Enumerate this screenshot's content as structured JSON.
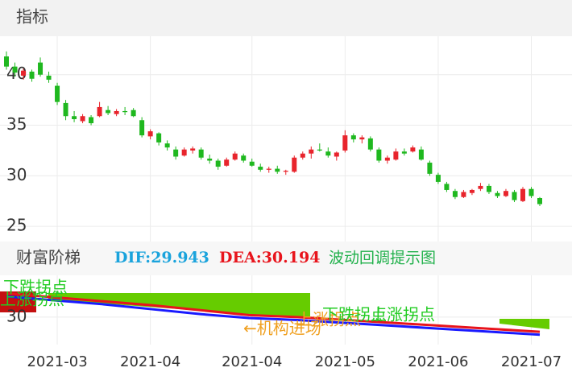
{
  "chart_data": [
    {
      "type": "candlestick",
      "title": "指标",
      "up_color": "#e8242c",
      "down_color": "#1fb81f",
      "ylim": [
        23.9,
        43.8
      ],
      "yticks": [
        25,
        30,
        35,
        40
      ],
      "grid": true,
      "categories": [
        null,
        null,
        null,
        null,
        null,
        null,
        "2021-03",
        null,
        null,
        null,
        null,
        null,
        null,
        null,
        null,
        null,
        null,
        "2021-04",
        null,
        null,
        null,
        null,
        null,
        null,
        null,
        null,
        null,
        null,
        null,
        "2021-04",
        null,
        null,
        null,
        null,
        null,
        null,
        null,
        null,
        null,
        null,
        "2021-05",
        null,
        null,
        null,
        null,
        null,
        null,
        null,
        null,
        null,
        null,
        "2021-06",
        null,
        null,
        null,
        null,
        null,
        null,
        null,
        null,
        null,
        null,
        "2021-07",
        null
      ],
      "ohlc": [
        [
          41.8,
          42.3,
          40.5,
          40.8
        ],
        [
          40.8,
          41.2,
          39.8,
          40.2
        ],
        [
          39.9,
          40.6,
          39.5,
          40.4
        ],
        [
          40.3,
          40.5,
          39.3,
          39.6
        ],
        [
          41.2,
          41.7,
          39.8,
          40.0
        ],
        [
          39.9,
          40.3,
          39.2,
          39.5
        ],
        [
          38.9,
          39.2,
          37.0,
          37.3
        ],
        [
          37.2,
          37.5,
          35.5,
          35.9
        ],
        [
          35.9,
          36.4,
          35.3,
          35.6
        ],
        [
          35.4,
          36.1,
          35.2,
          35.9
        ],
        [
          35.8,
          36.0,
          35.0,
          35.2
        ],
        [
          35.9,
          37.3,
          35.8,
          36.8
        ],
        [
          36.5,
          36.9,
          36.0,
          36.2
        ],
        [
          36.1,
          36.6,
          35.9,
          36.4
        ],
        [
          36.4,
          36.8,
          36.0,
          36.3
        ],
        [
          36.5,
          36.7,
          35.8,
          35.9
        ],
        [
          35.5,
          35.8,
          33.8,
          34.0
        ],
        [
          33.9,
          34.6,
          33.6,
          34.4
        ],
        [
          34.2,
          34.3,
          33.0,
          33.3
        ],
        [
          33.2,
          33.5,
          32.5,
          32.8
        ],
        [
          32.6,
          32.9,
          31.6,
          31.9
        ],
        [
          32.0,
          32.8,
          31.9,
          32.6
        ],
        [
          32.5,
          32.9,
          32.2,
          32.7
        ],
        [
          32.6,
          32.8,
          31.6,
          31.8
        ],
        [
          31.7,
          32.1,
          31.2,
          31.5
        ],
        [
          31.5,
          31.7,
          30.6,
          30.9
        ],
        [
          31.0,
          31.8,
          30.9,
          31.6
        ],
        [
          31.6,
          32.4,
          31.5,
          32.2
        ],
        [
          32.0,
          32.2,
          31.3,
          31.5
        ],
        [
          31.4,
          31.7,
          30.9,
          31.0
        ],
        [
          30.9,
          31.2,
          30.4,
          30.6
        ],
        [
          30.6,
          30.9,
          30.3,
          30.7
        ],
        [
          30.7,
          31.0,
          30.2,
          30.4
        ],
        [
          30.4,
          30.6,
          30.1,
          30.5
        ],
        [
          30.4,
          32.0,
          30.3,
          31.8
        ],
        [
          31.8,
          32.4,
          31.6,
          32.2
        ],
        [
          32.2,
          32.9,
          31.7,
          32.6
        ],
        [
          32.6,
          33.2,
          32.4,
          32.5
        ],
        [
          32.4,
          32.8,
          31.8,
          32.0
        ],
        [
          31.9,
          32.4,
          31.5,
          32.3
        ],
        [
          32.5,
          34.5,
          32.3,
          34.0
        ],
        [
          34.0,
          34.2,
          33.3,
          33.6
        ],
        [
          33.6,
          34.0,
          33.2,
          33.8
        ],
        [
          33.7,
          33.9,
          32.4,
          32.6
        ],
        [
          32.6,
          32.8,
          31.3,
          31.5
        ],
        [
          31.5,
          32.0,
          31.2,
          31.8
        ],
        [
          31.6,
          32.7,
          31.5,
          32.4
        ],
        [
          32.4,
          32.7,
          32.0,
          32.2
        ],
        [
          32.4,
          33.0,
          32.3,
          32.8
        ],
        [
          32.6,
          32.9,
          31.5,
          31.6
        ],
        [
          31.3,
          31.5,
          30.0,
          30.2
        ],
        [
          30.1,
          30.3,
          29.2,
          29.4
        ],
        [
          29.2,
          29.4,
          28.4,
          28.6
        ],
        [
          28.5,
          28.7,
          27.7,
          27.9
        ],
        [
          27.9,
          28.6,
          27.8,
          28.4
        ],
        [
          28.3,
          28.7,
          28.1,
          28.6
        ],
        [
          28.7,
          29.3,
          28.5,
          29.0
        ],
        [
          29.0,
          29.2,
          28.2,
          28.4
        ],
        [
          28.3,
          28.5,
          27.8,
          28.0
        ],
        [
          28.0,
          28.7,
          27.9,
          28.5
        ],
        [
          28.4,
          28.6,
          27.4,
          27.6
        ],
        [
          27.5,
          28.9,
          27.4,
          28.7
        ],
        [
          28.7,
          28.9,
          27.8,
          28.0
        ],
        [
          27.8,
          27.9,
          27.0,
          27.2
        ]
      ]
    },
    {
      "type": "line",
      "title": "财富阶梯",
      "dif_label": "DIF:29.943",
      "dea_label": "DEA:30.194",
      "subtitle": "波动回调提示图",
      "ylim": [
        28.6,
        32
      ],
      "yticks": [
        30
      ],
      "categories": [
        null,
        null,
        null,
        null,
        null,
        null,
        null,
        null,
        null,
        null,
        null,
        null
      ],
      "series": [
        {
          "color": "#e8141c",
          "values": [
            31.2,
            31.0,
            30.8,
            30.6,
            30.35,
            30.1,
            30.0,
            29.85,
            29.7,
            29.55,
            29.4,
            29.25
          ]
        },
        {
          "color": "#1a1aff",
          "values": [
            31.05,
            30.85,
            30.65,
            30.4,
            30.15,
            29.95,
            29.85,
            29.7,
            29.55,
            29.4,
            29.25,
            29.1
          ]
        }
      ],
      "annotations": [
        "下跌拐点",
        "上涨拐点",
        "←机构进场",
        "上涨拐点",
        "下跌拐点",
        "上涨拐点"
      ]
    }
  ]
}
